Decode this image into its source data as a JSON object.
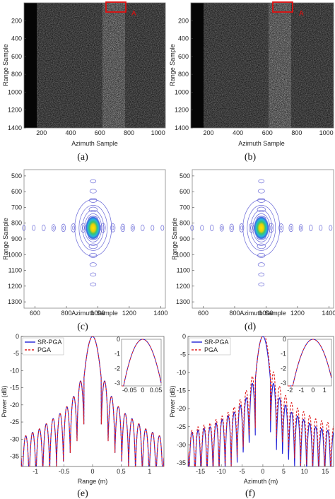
{
  "panels": [
    {
      "caption": "(a)",
      "xlabel": "Azimuth Sample",
      "ylabel": "Range Sample",
      "xticks": [
        200,
        400,
        600,
        800,
        1000
      ],
      "yticks": [
        200,
        400,
        600,
        800,
        1000,
        1200,
        1400
      ],
      "marker": "A"
    },
    {
      "caption": "(b)",
      "xlabel": "Azimuth Sample",
      "ylabel": "Range Sample",
      "xticks": [
        200,
        400,
        600,
        800,
        1000
      ],
      "yticks": [
        200,
        400,
        600,
        800,
        1000,
        1200,
        1400
      ],
      "marker": "A"
    },
    {
      "caption": "(c)",
      "xlabel": "Azimuth Sample",
      "ylabel": "Range Sample",
      "xticks": [
        600,
        800,
        1000,
        1200,
        1400
      ],
      "yticks": [
        500,
        600,
        700,
        800,
        900,
        1000,
        1100,
        1200,
        1300
      ]
    },
    {
      "caption": "(d)",
      "xlabel": "Azimuth Sample",
      "ylabel": "Range Sample",
      "xticks": [
        600,
        800,
        1000,
        1200,
        1400
      ],
      "yticks": [
        500,
        600,
        700,
        800,
        900,
        1000,
        1100,
        1200,
        1300
      ]
    },
    {
      "caption": "(e)",
      "xlabel": "Range (m)",
      "ylabel": "Power (dB)",
      "xticks": [
        "-1",
        "-0.5",
        "0",
        "0.5",
        "1"
      ],
      "yticks": [
        "0",
        "-5",
        "-10",
        "-15",
        "-20",
        "-25",
        "-30",
        "-35"
      ],
      "legend": [
        "SR-PGA",
        "PGA"
      ],
      "inset_xticks": [
        "-0.05",
        "0",
        "0.05"
      ],
      "inset_yticks": [
        "0",
        "-1",
        "-2",
        "-3"
      ]
    },
    {
      "caption": "(f)",
      "xlabel": "Azimuth (m)",
      "ylabel": "Power (dB)",
      "xticks": [
        "-15",
        "-10",
        "-5",
        "0",
        "5",
        "10",
        "15"
      ],
      "yticks": [
        "0",
        "-5",
        "-10",
        "-15",
        "-20",
        "-25",
        "-30",
        "-35"
      ],
      "legend": [
        "SR-PGA",
        "PGA"
      ],
      "inset_xticks": [
        "-2",
        "-1",
        "0",
        "1"
      ],
      "inset_yticks": [
        "0",
        "-1",
        "-2",
        "-3"
      ]
    }
  ],
  "chart_data": [
    {
      "type": "heatmap",
      "xlabel": "Azimuth Sample",
      "ylabel": "Range Sample",
      "xlim": [
        80,
        1050
      ],
      "ylim": [
        0,
        1400
      ]
    },
    {
      "type": "heatmap",
      "xlabel": "Azimuth Sample",
      "ylabel": "Range Sample",
      "xlim": [
        80,
        1050
      ],
      "ylim": [
        0,
        1400
      ]
    },
    {
      "type": "contour",
      "xlabel": "Azimuth Sample",
      "ylabel": "Range Sample",
      "xlim": [
        530,
        1430
      ],
      "ylim": [
        460,
        1340
      ],
      "peak": [
        970,
        830
      ]
    },
    {
      "type": "contour",
      "xlabel": "Azimuth Sample",
      "ylabel": "Range Sample",
      "xlim": [
        530,
        1430
      ],
      "ylim": [
        460,
        1340
      ],
      "peak": [
        970,
        830
      ]
    },
    {
      "type": "line",
      "xlabel": "Range (m)",
      "ylabel": "Power (dB)",
      "xlim": [
        -1.25,
        1.25
      ],
      "ylim": [
        -38,
        0
      ],
      "series": [
        {
          "name": "SR-PGA",
          "color": "#1f1fd6",
          "mainlobe_width": 0.07,
          "sidelobe_spacing": 0.12,
          "sidelobe_peaks_db": [
            -13,
            -17.5,
            -20.5,
            -22.5,
            -24,
            -25.5,
            -27,
            -28,
            -29,
            -30,
            -32
          ]
        },
        {
          "name": "PGA",
          "color": "#e01e1e",
          "mainlobe_width": 0.07,
          "sidelobe_spacing": 0.12,
          "sidelobe_peaks_db": [
            -13,
            -17.5,
            -20.5,
            -22.5,
            -24,
            -25.5,
            -27,
            -28,
            -29,
            -30,
            -32
          ]
        }
      ]
    },
    {
      "type": "line",
      "xlabel": "Azimuth (m)",
      "ylabel": "Power (dB)",
      "xlim": [
        -18,
        17
      ],
      "ylim": [
        -36,
        0
      ],
      "series": [
        {
          "name": "SR-PGA",
          "color": "#1f1fd6",
          "mainlobe_width": 1.6,
          "sidelobe_spacing": 1.45,
          "sidelobe_peaks_db": [
            -13,
            -17,
            -19,
            -21,
            -22,
            -23,
            -24,
            -25,
            -25.5,
            -26,
            -26.5,
            -27
          ]
        },
        {
          "name": "PGA",
          "color": "#e01e1e",
          "mainlobe_width": 1.6,
          "sidelobe_spacing": 1.45,
          "sidelobe_peaks_db": [
            -11,
            -15,
            -17.5,
            -19.5,
            -21,
            -22,
            -23,
            -24,
            -24.5,
            -25,
            -26,
            -26.5
          ]
        }
      ]
    }
  ]
}
